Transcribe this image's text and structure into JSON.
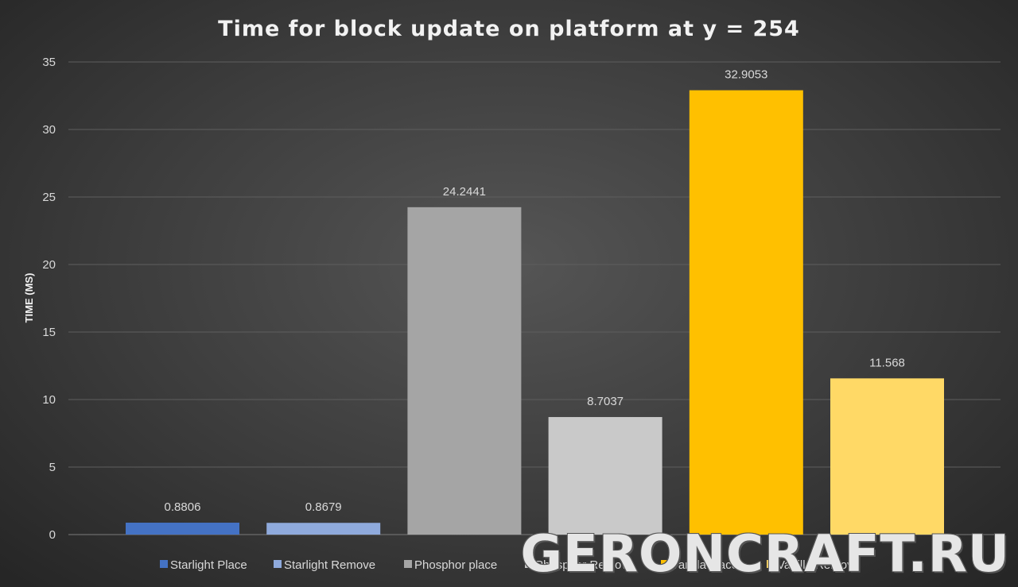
{
  "chart_data": {
    "type": "bar",
    "title": "Time for block update on platform at y = 254",
    "xlabel": "",
    "ylabel": "TIME (MS)",
    "ylim": [
      0,
      35
    ],
    "yticks": [
      0,
      5,
      10,
      15,
      20,
      25,
      30,
      35
    ],
    "grid": true,
    "legend_position": "bottom",
    "series": [
      {
        "name": "Starlight Place",
        "value": 0.8806,
        "label": "0.8806",
        "color": "#4472c4"
      },
      {
        "name": "Starlight Remove",
        "value": 0.8679,
        "label": "0.8679",
        "color": "#8faadc"
      },
      {
        "name": "Phosphor place",
        "value": 24.2441,
        "label": "24.2441",
        "color": "#a5a5a5"
      },
      {
        "name": "Phosphor Remove",
        "value": 8.7037,
        "label": "8.7037",
        "color": "#c9c9c9"
      },
      {
        "name": "Vanilla place",
        "value": 32.9053,
        "label": "32.9053",
        "color": "#ffc000"
      },
      {
        "name": "Vanilla Remove",
        "value": 11.568,
        "label": "11.568",
        "color": "#ffd966"
      }
    ]
  },
  "watermark": "GERONCRAFT.RU"
}
